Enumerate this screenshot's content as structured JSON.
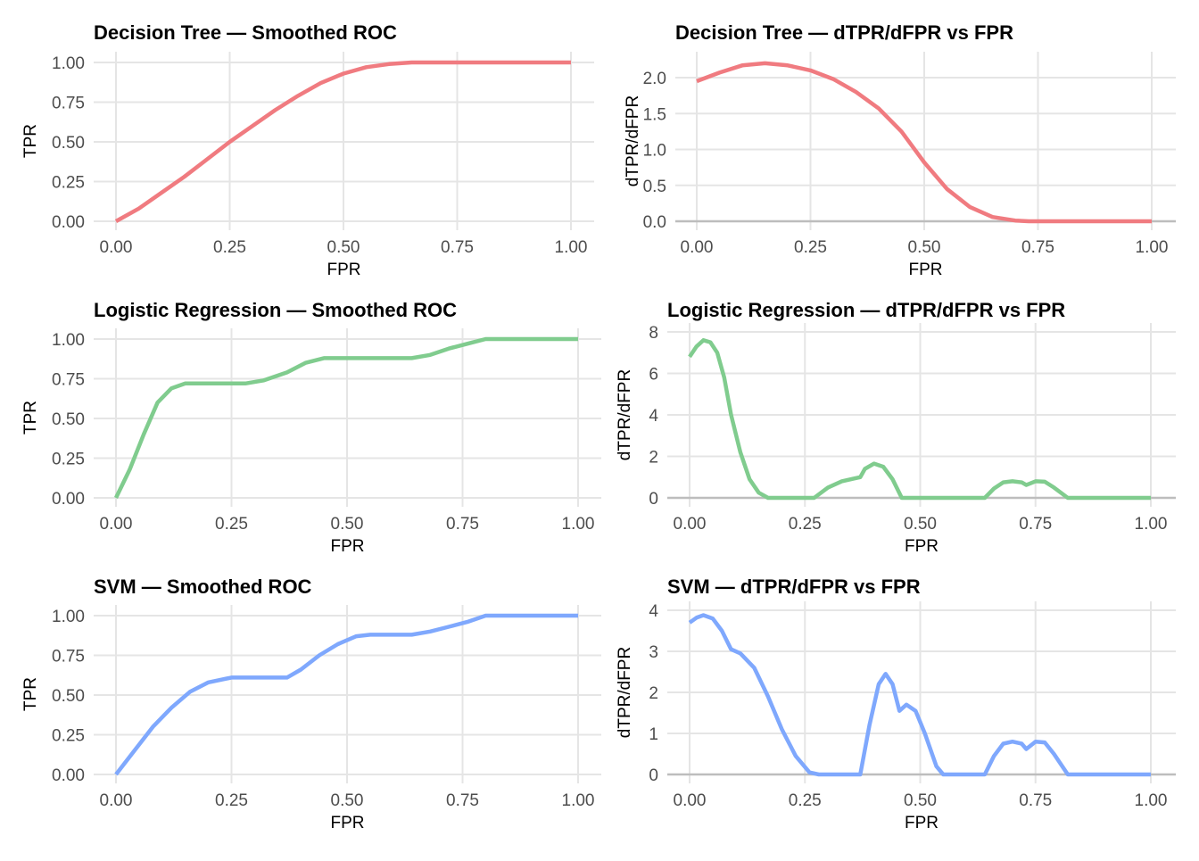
{
  "chart_data": [
    {
      "type": "line",
      "title": "Decision Tree — Smoothed ROC",
      "xlabel": "FPR",
      "ylabel": "TPR",
      "color": "#F07B80",
      "xlim": [
        0,
        1
      ],
      "ylim": [
        0,
        1
      ],
      "xticks": [
        "0.00",
        "0.25",
        "0.50",
        "0.75",
        "1.00"
      ],
      "yticks": [
        "0.00",
        "0.25",
        "0.50",
        "0.75",
        "1.00"
      ],
      "x": [
        0,
        0.05,
        0.1,
        0.15,
        0.2,
        0.25,
        0.3,
        0.35,
        0.4,
        0.45,
        0.5,
        0.55,
        0.6,
        0.65,
        0.7,
        1
      ],
      "y": [
        0,
        0.08,
        0.18,
        0.28,
        0.39,
        0.5,
        0.6,
        0.7,
        0.79,
        0.87,
        0.93,
        0.97,
        0.99,
        1,
        1,
        1
      ]
    },
    {
      "type": "line",
      "title": "Decision Tree — dTPR/dFPR vs FPR",
      "xlabel": "FPR",
      "ylabel": "dTPR/dFPR",
      "color": "#F07B80",
      "xlim": [
        0,
        1
      ],
      "ylim": [
        0,
        2.0
      ],
      "xticks": [
        "0.00",
        "0.25",
        "0.50",
        "0.75",
        "1.00"
      ],
      "yticks": [
        "0.0",
        "0.5",
        "1.0",
        "1.5",
        "2.0"
      ],
      "x": [
        0,
        0.05,
        0.1,
        0.15,
        0.2,
        0.25,
        0.3,
        0.35,
        0.4,
        0.45,
        0.5,
        0.55,
        0.6,
        0.65,
        0.7,
        0.73,
        1
      ],
      "y": [
        1.95,
        2.07,
        2.17,
        2.2,
        2.17,
        2.1,
        1.98,
        1.8,
        1.57,
        1.25,
        0.82,
        0.45,
        0.2,
        0.06,
        0.01,
        0,
        0
      ]
    },
    {
      "type": "line",
      "title": "Logistic Regression — Smoothed ROC",
      "xlabel": "FPR",
      "ylabel": "TPR",
      "color": "#80CC8E",
      "xlim": [
        0,
        1
      ],
      "ylim": [
        0,
        1
      ],
      "xticks": [
        "0.00",
        "0.25",
        "0.50",
        "0.75",
        "1.00"
      ],
      "yticks": [
        "0.00",
        "0.25",
        "0.50",
        "0.75",
        "1.00"
      ],
      "x": [
        0,
        0.03,
        0.06,
        0.09,
        0.12,
        0.15,
        0.2,
        0.28,
        0.32,
        0.37,
        0.41,
        0.45,
        0.5,
        0.64,
        0.68,
        0.72,
        0.76,
        0.8,
        1
      ],
      "y": [
        0,
        0.18,
        0.4,
        0.6,
        0.69,
        0.72,
        0.72,
        0.72,
        0.74,
        0.79,
        0.85,
        0.88,
        0.88,
        0.88,
        0.9,
        0.94,
        0.97,
        1,
        1
      ]
    },
    {
      "type": "line",
      "title": "Logistic Regression — dTPR/dFPR vs FPR",
      "xlabel": "FPR",
      "ylabel": "dTPR/dFPR",
      "color": "#80CC8E",
      "xlim": [
        0,
        1
      ],
      "ylim": [
        0,
        8
      ],
      "xticks": [
        "0.00",
        "0.25",
        "0.50",
        "0.75",
        "1.00"
      ],
      "yticks": [
        "0",
        "2",
        "4",
        "6",
        "8"
      ],
      "x": [
        0,
        0.015,
        0.03,
        0.045,
        0.06,
        0.075,
        0.09,
        0.11,
        0.13,
        0.15,
        0.17,
        0.27,
        0.3,
        0.33,
        0.36,
        0.37,
        0.38,
        0.4,
        0.42,
        0.44,
        0.46,
        0.64,
        0.66,
        0.68,
        0.7,
        0.72,
        0.73,
        0.75,
        0.77,
        0.79,
        0.82,
        1
      ],
      "y": [
        6.8,
        7.3,
        7.6,
        7.5,
        7.0,
        5.8,
        4.0,
        2.2,
        0.9,
        0.25,
        0,
        0,
        0.5,
        0.8,
        0.95,
        1.0,
        1.4,
        1.65,
        1.5,
        0.9,
        0,
        0,
        0.45,
        0.75,
        0.8,
        0.75,
        0.62,
        0.8,
        0.78,
        0.5,
        0,
        0
      ]
    },
    {
      "type": "line",
      "title": "SVM — Smoothed ROC",
      "xlabel": "FPR",
      "ylabel": "TPR",
      "color": "#7FA8FD",
      "xlim": [
        0,
        1
      ],
      "ylim": [
        0,
        1
      ],
      "xticks": [
        "0.00",
        "0.25",
        "0.50",
        "0.75",
        "1.00"
      ],
      "yticks": [
        "0.00",
        "0.25",
        "0.50",
        "0.75",
        "1.00"
      ],
      "x": [
        0,
        0.04,
        0.08,
        0.12,
        0.16,
        0.2,
        0.25,
        0.3,
        0.37,
        0.4,
        0.44,
        0.48,
        0.52,
        0.55,
        0.64,
        0.68,
        0.72,
        0.76,
        0.8,
        1
      ],
      "y": [
        0,
        0.15,
        0.3,
        0.42,
        0.52,
        0.58,
        0.61,
        0.61,
        0.61,
        0.66,
        0.75,
        0.82,
        0.87,
        0.88,
        0.88,
        0.9,
        0.93,
        0.96,
        1,
        1
      ]
    },
    {
      "type": "line",
      "title": "SVM — dTPR/dFPR vs FPR",
      "xlabel": "FPR",
      "ylabel": "dTPR/dFPR",
      "color": "#7FA8FD",
      "xlim": [
        0,
        1
      ],
      "ylim": [
        0,
        4
      ],
      "xticks": [
        "0.00",
        "0.25",
        "0.50",
        "0.75",
        "1.00"
      ],
      "yticks": [
        "0",
        "1",
        "2",
        "3",
        "4"
      ],
      "x": [
        0,
        0.015,
        0.03,
        0.05,
        0.07,
        0.09,
        0.11,
        0.14,
        0.17,
        0.2,
        0.23,
        0.26,
        0.28,
        0.37,
        0.39,
        0.41,
        0.425,
        0.44,
        0.455,
        0.47,
        0.49,
        0.51,
        0.535,
        0.55,
        0.64,
        0.66,
        0.68,
        0.7,
        0.72,
        0.73,
        0.75,
        0.77,
        0.79,
        0.82,
        1
      ],
      "y": [
        3.7,
        3.82,
        3.88,
        3.8,
        3.5,
        3.05,
        2.95,
        2.6,
        1.9,
        1.1,
        0.45,
        0.05,
        0,
        0,
        1.2,
        2.2,
        2.45,
        2.2,
        1.55,
        1.7,
        1.55,
        1.0,
        0.2,
        0,
        0,
        0.45,
        0.75,
        0.8,
        0.75,
        0.62,
        0.8,
        0.78,
        0.5,
        0,
        0
      ]
    }
  ]
}
